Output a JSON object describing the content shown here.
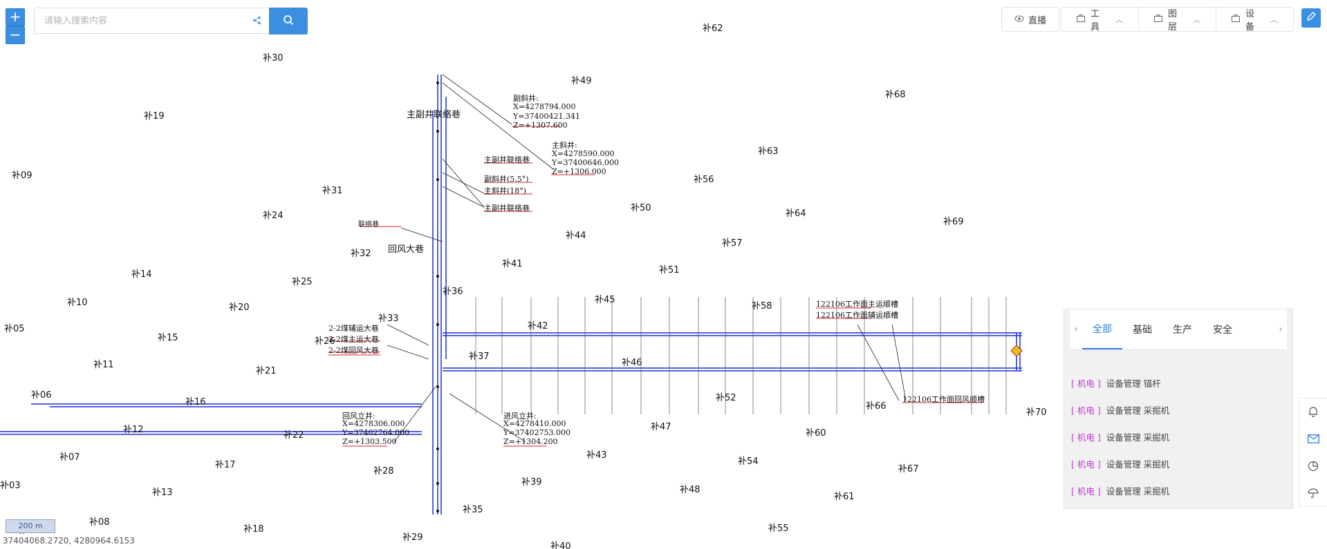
{
  "search": {
    "placeholder": "请输入搜索内容"
  },
  "zoom": {
    "in_label": "+",
    "out_label": "−"
  },
  "toolbar": {
    "live_label": "直播",
    "tools_label": "工具",
    "layers_label": "图层",
    "devices_label": "设备"
  },
  "panel": {
    "tabs": [
      "全部",
      "基础",
      "生产",
      "安全"
    ],
    "items": [
      {
        "category": "[ 机电 ]",
        "text": "设备管理 锚杆"
      },
      {
        "category": "[ 机电 ]",
        "text": "设备管理 采掘机"
      },
      {
        "category": "[ 机电 ]",
        "text": "设备管理 采掘机"
      },
      {
        "category": "[ 机电 ]",
        "text": "设备管理 采掘机"
      },
      {
        "category": "[ 机电 ]",
        "text": "设备管理 采掘机"
      }
    ]
  },
  "status": {
    "coordinates": "37404068.2720, 4280964.6153",
    "scale": "200 m"
  },
  "map": {
    "points": [
      "补62",
      "补30",
      "补49",
      "补68",
      "补19",
      "补63",
      "补09",
      "补31",
      "补56",
      "补50",
      "补64",
      "补69",
      "补24",
      "补44",
      "补57",
      "补32",
      "补41",
      "补51",
      "补14",
      "补25",
      "补45",
      "补10",
      "补20",
      "补58",
      "补33",
      "补05",
      "补15",
      "补42",
      "补11",
      "补21",
      "补46",
      "补36",
      "补06",
      "补16",
      "补12",
      "补22",
      "补07",
      "补17",
      "补47",
      "补52",
      "补66",
      "补70",
      "补60",
      "补43",
      "补54",
      "补67",
      "补03",
      "补13",
      "补28",
      "补39",
      "补48",
      "补61",
      "补08",
      "补18",
      "补35",
      "补55",
      "补29",
      "补40",
      "补04",
      "补37",
      "补26"
    ],
    "annotations": [
      "副斜井:",
      "X=4278794.000",
      "Y=37400421.341",
      "Z=+1307.600",
      "主斜井:",
      "X=4278590.000",
      "Y=37400646.000",
      "Z=+1306.000",
      "主副井联络巷",
      "副斜井(5.5°)",
      "主斜井(18°)",
      "主副井联络巷",
      "回风立井:",
      "X=4278306.000",
      "Y=37402764.000",
      "Z=+1303.500",
      "进风立井:",
      "X=4278410.000",
      "Y=37402753.000",
      "Z=+1304.200",
      "2-2煤辅运大巷",
      "2-2煤主运大巷",
      "2-2煤回风大巷",
      "122106工作面主运顺槽",
      "122106工作面辅运顺槽",
      "122106工作面回风顺槽",
      "主副井联络巷",
      "回风大巷",
      "联络巷"
    ]
  },
  "colors": {
    "accent": "#3b8fe0",
    "mine_lines": "#1a2fd6",
    "tab_active": "#2b7de0",
    "category": "#c13bd3"
  }
}
